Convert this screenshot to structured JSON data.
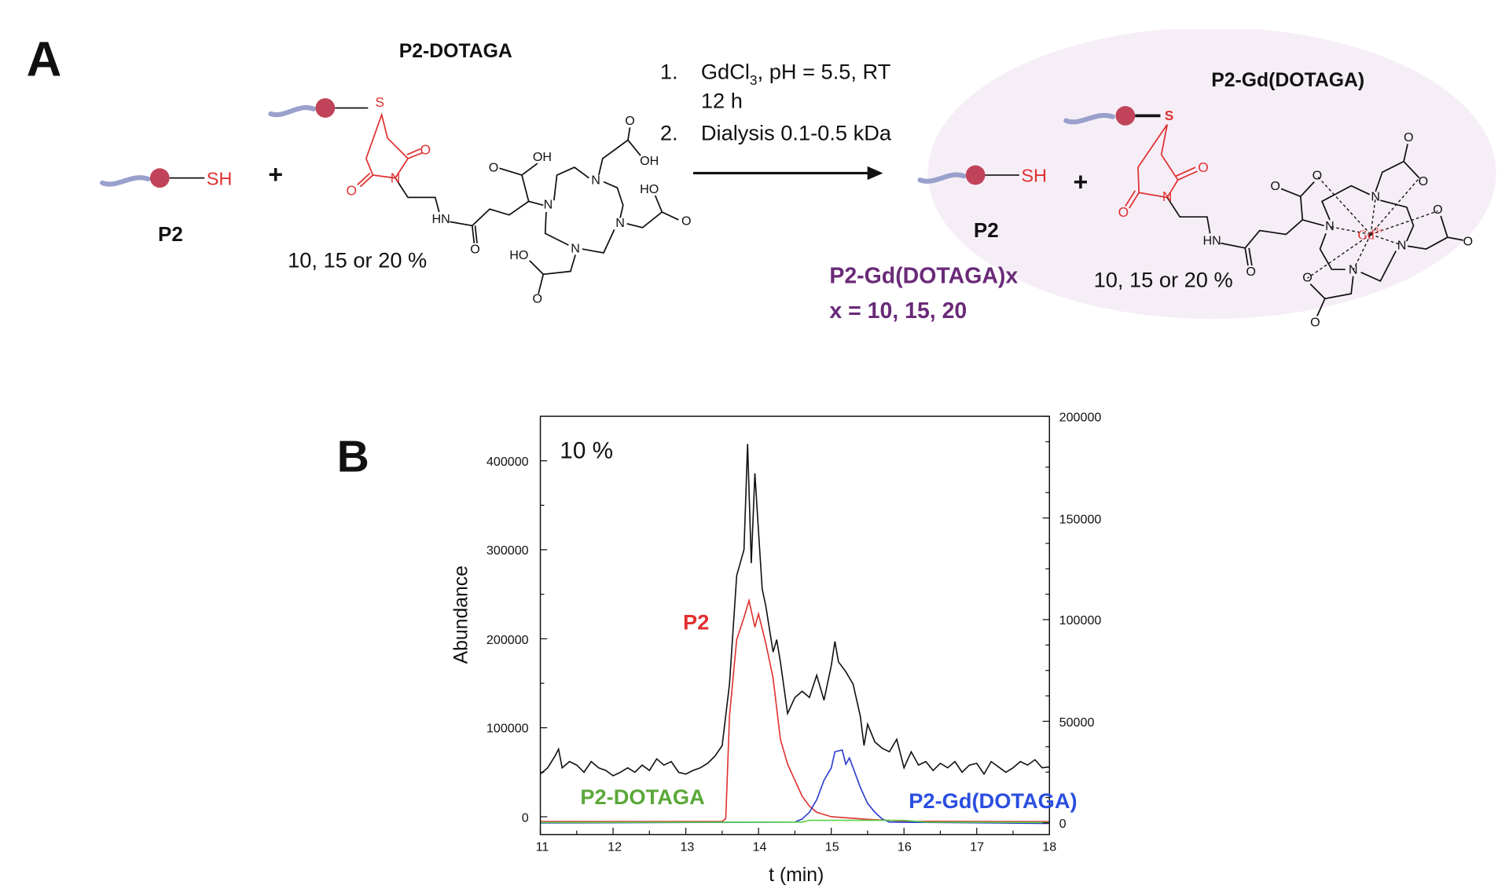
{
  "panel_a": {
    "label": "A",
    "dotaga_title": "P2-DOTAGA",
    "p2_label": "P2",
    "sh_label": "SH",
    "plus": "+",
    "percent_left": "10, 15 or 20 %",
    "conditions": {
      "step1_num": "1.",
      "step1_a": "GdCl",
      "step1_sub": "3",
      "step1_b": ", pH = 5.5, RT",
      "step1_time": "12 h",
      "step2_num": "2.",
      "step2": "Dialysis 0.1-0.5 kDa"
    },
    "product_title": "P2-Gd(DOTAGA)",
    "product_p2_label": "P2",
    "product_sh_label": "SH",
    "product_plus": "+",
    "product_percent": "10, 15 or 20 %",
    "product_name": "P2-Gd(DOTAGA)x",
    "product_x": "x = 10, 15, 20",
    "gd_label": "Gd",
    "gd_charge": "3+",
    "dotaga_atoms": [
      "S",
      "O",
      "N",
      "O",
      "HN",
      "O",
      "O",
      "OH",
      "N",
      "N",
      "N",
      "N",
      "O",
      "OH",
      "O",
      "HO",
      "O",
      "HO"
    ],
    "gd_atoms": [
      "S",
      "O",
      "N",
      "O",
      "HN",
      "O",
      "O",
      "O",
      "N",
      "N",
      "N",
      "N",
      "O",
      "O",
      "O",
      "O",
      "O",
      "O"
    ],
    "colors": {
      "linker": "#e03030",
      "chain": "#9aa0cc",
      "bead": "#c0435a",
      "ellipse": "#f6eef7",
      "product_name": "#6a2a78"
    }
  },
  "panel_b": {
    "label": "B",
    "inset": "10 %"
  },
  "chart_data": {
    "type": "line",
    "xlabel": "t (min)",
    "ylabel": "Abundance",
    "xlim": [
      11,
      18
    ],
    "ylim_left": [
      -20000,
      450000
    ],
    "ylim_right": [
      -5700,
      200000
    ],
    "x_ticks": [
      "11",
      "12",
      "13",
      "14",
      "15",
      "16",
      "17",
      "18"
    ],
    "y_ticks_left": [
      "0",
      "100000",
      "200000",
      "300000",
      "400000"
    ],
    "y_ticks_right": [
      "0",
      "50000",
      "100000",
      "150000",
      "200000"
    ],
    "grid": false,
    "annotations": [
      {
        "text": "P2",
        "color": "#e03030"
      },
      {
        "text": "P2-DOTAGA",
        "color": "#5aa83a"
      },
      {
        "text": "P2-Gd(DOTAGA)",
        "color": "#2a4ee0"
      }
    ],
    "series": [
      {
        "color": "#111111",
        "axis": "left",
        "x": [
          11.0,
          11.1,
          11.2,
          11.25,
          11.3,
          11.4,
          11.5,
          11.6,
          11.7,
          11.8,
          11.9,
          12.0,
          12.1,
          12.2,
          12.3,
          12.4,
          12.5,
          12.6,
          12.7,
          12.8,
          12.9,
          13.0,
          13.1,
          13.2,
          13.3,
          13.4,
          13.5,
          13.6,
          13.7,
          13.8,
          13.85,
          13.9,
          13.95,
          14.0,
          14.05,
          14.1,
          14.2,
          14.25,
          14.3,
          14.4,
          14.5,
          14.6,
          14.7,
          14.8,
          14.9,
          15.0,
          15.05,
          15.1,
          15.2,
          15.3,
          15.4,
          15.45,
          15.5,
          15.6,
          15.7,
          15.8,
          15.9,
          16.0,
          16.1,
          16.2,
          16.3,
          16.4,
          16.5,
          16.6,
          16.7,
          16.8,
          16.9,
          17.0,
          17.1,
          17.2,
          17.3,
          17.4,
          17.5,
          17.6,
          17.7,
          17.8,
          17.9,
          18.0
        ],
        "y": [
          48000,
          55000,
          68000,
          76000,
          55000,
          62000,
          58000,
          50000,
          62000,
          55000,
          52000,
          46000,
          50000,
          55000,
          50000,
          58000,
          52000,
          65000,
          58000,
          62000,
          50000,
          48000,
          52000,
          55000,
          60000,
          68000,
          80000,
          149000,
          271000,
          300000,
          419000,
          285000,
          386000,
          321000,
          256000,
          237000,
          185000,
          199000,
          174000,
          116000,
          134000,
          141000,
          134000,
          159000,
          131000,
          170000,
          197000,
          174000,
          163000,
          149000,
          113000,
          80000,
          104000,
          84000,
          77000,
          73000,
          87000,
          55000,
          73000,
          58000,
          62000,
          52000,
          60000,
          55000,
          62000,
          50000,
          58000,
          60000,
          48000,
          62000,
          56000,
          50000,
          55000,
          62000,
          58000,
          64000,
          55000,
          56000
        ]
      },
      {
        "color": "#e03030",
        "axis": "left",
        "x": [
          11.0,
          13.5,
          13.55,
          13.6,
          13.7,
          13.8,
          13.87,
          13.95,
          14.0,
          14.1,
          14.2,
          14.3,
          14.4,
          14.5,
          14.6,
          14.7,
          14.8,
          15.0,
          15.5,
          16.0,
          18.0
        ],
        "y": [
          -5400,
          -5400,
          -2000,
          113000,
          199000,
          224000,
          243000,
          213000,
          228000,
          195000,
          156000,
          87000,
          59000,
          41000,
          23000,
          12000,
          5000,
          0,
          -3000,
          -5000,
          -5500
        ]
      },
      {
        "color": "#2a3ad0",
        "axis": "left",
        "x": [
          11.0,
          14.5,
          14.6,
          14.7,
          14.8,
          14.9,
          15.0,
          15.05,
          15.15,
          15.2,
          15.25,
          15.3,
          15.4,
          15.5,
          15.6,
          15.7,
          15.8,
          18.0
        ],
        "y": [
          -7000,
          -6000,
          -2500,
          5000,
          19000,
          41000,
          55000,
          73000,
          75000,
          59000,
          66000,
          55000,
          33000,
          15000,
          5000,
          -2500,
          -6000,
          -7500
        ]
      },
      {
        "color": "#5ad04a",
        "axis": "left",
        "x": [
          11.0,
          14.6,
          14.7,
          16.0,
          16.3,
          18.0
        ],
        "y": [
          -6500,
          -6000,
          -4000,
          -4000,
          -6000,
          -6500
        ]
      }
    ]
  }
}
